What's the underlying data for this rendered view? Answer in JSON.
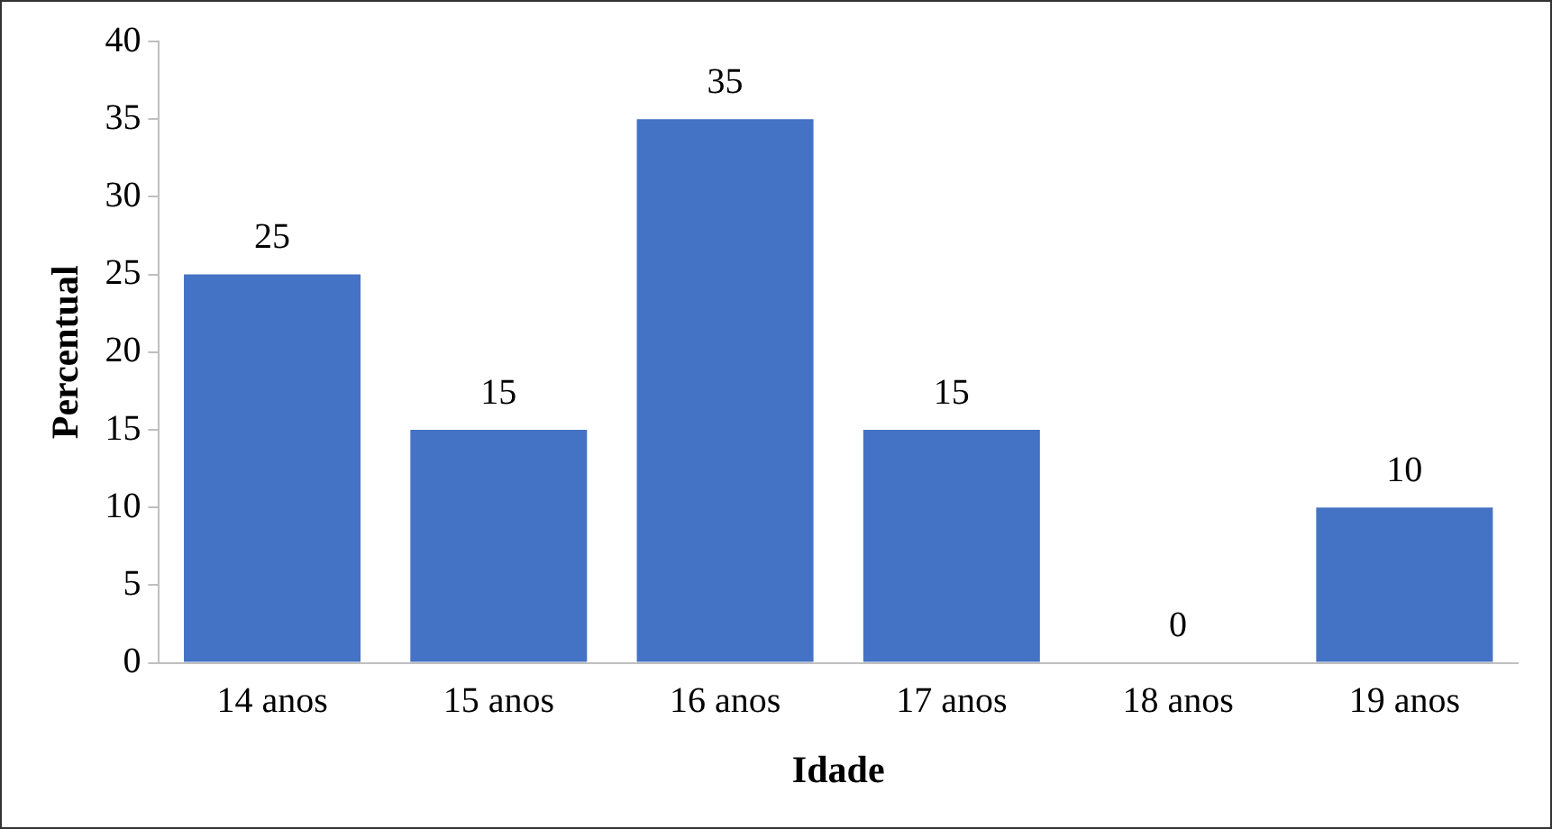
{
  "chart_data": {
    "type": "bar",
    "xlabel": "Idade",
    "ylabel": "Percentual",
    "categories": [
      "14 anos",
      "15 anos",
      "16 anos",
      "17 anos",
      "18 anos",
      "19 anos"
    ],
    "values": [
      25,
      15,
      35,
      15,
      0,
      10
    ],
    "color": "#4472c4",
    "ylim": [
      0,
      40
    ],
    "yticks": [
      0,
      5,
      10,
      15,
      20,
      25,
      30,
      35,
      40
    ],
    "grid": false,
    "legend": false,
    "data_labels": true
  }
}
